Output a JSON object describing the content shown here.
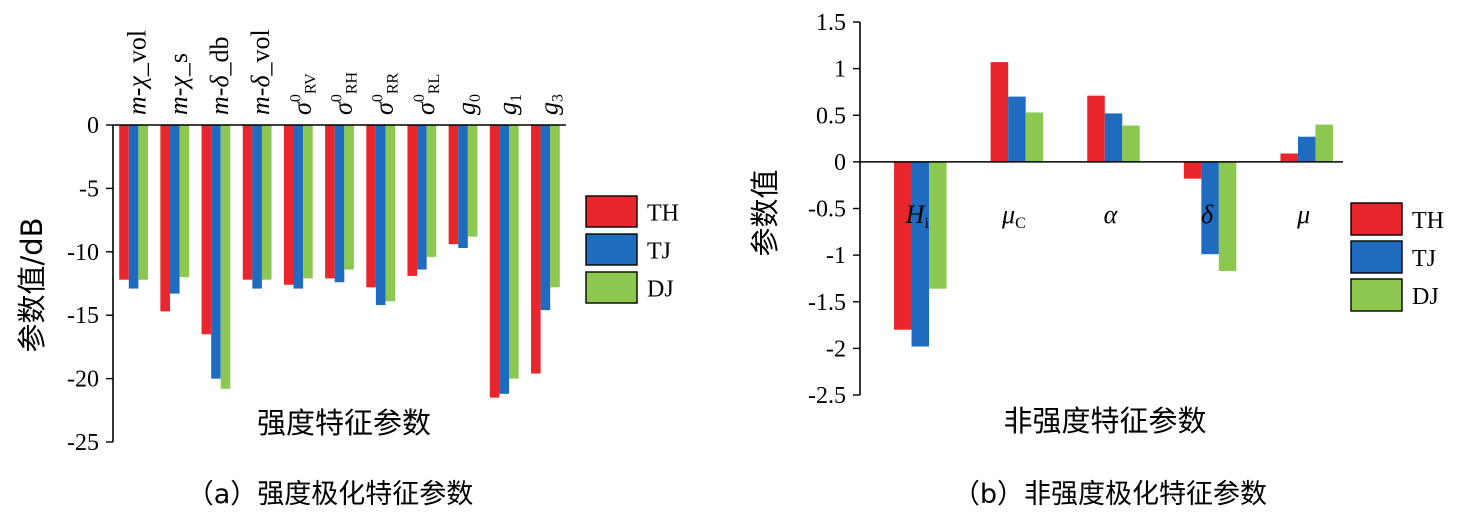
{
  "colors": {
    "TH": "#e8262c",
    "TJ": "#1f6bbf",
    "DJ": "#8cc850"
  },
  "legend": [
    "TH",
    "TJ",
    "DJ"
  ],
  "chart_data": [
    {
      "type": "bar",
      "caption": "（a）强度极化特征参数",
      "xlabel": "强度特征参数",
      "ylabel": "参数值/dB",
      "ylim": [
        -25,
        0
      ],
      "yticks": [
        "0",
        "-5",
        "-10",
        "-15",
        "-20",
        "-25"
      ],
      "legend_position": "right",
      "categories": [
        {
          "label": "m-χ_vol",
          "parts": [
            {
              "t": "m",
              "s": "i"
            },
            {
              "t": "-",
              "s": "n"
            },
            {
              "t": "χ",
              "s": "i"
            },
            {
              "t": "_vol",
              "s": "n"
            }
          ]
        },
        {
          "label": "m-χ_s",
          "parts": [
            {
              "t": "m",
              "s": "i"
            },
            {
              "t": "-",
              "s": "n"
            },
            {
              "t": "χ",
              "s": "i"
            },
            {
              "t": "_s",
              "s": "n"
            }
          ]
        },
        {
          "label": "m-δ_db",
          "parts": [
            {
              "t": "m",
              "s": "i"
            },
            {
              "t": "-",
              "s": "n"
            },
            {
              "t": "δ",
              "s": "i"
            },
            {
              "t": "_db",
              "s": "n"
            }
          ]
        },
        {
          "label": "m-δ_vol",
          "parts": [
            {
              "t": "m",
              "s": "i"
            },
            {
              "t": "-",
              "s": "n"
            },
            {
              "t": "δ",
              "s": "i"
            },
            {
              "t": "_vol",
              "s": "n"
            }
          ]
        },
        {
          "label": "σ0RV",
          "parts": [
            {
              "t": "σ",
              "s": "i"
            },
            {
              "t": "0",
              "s": "sup"
            },
            {
              "t": "RV",
              "s": "sub"
            }
          ]
        },
        {
          "label": "σ0RH",
          "parts": [
            {
              "t": "σ",
              "s": "i"
            },
            {
              "t": "0",
              "s": "sup"
            },
            {
              "t": "RH",
              "s": "sub"
            }
          ]
        },
        {
          "label": "σ0RR",
          "parts": [
            {
              "t": "σ",
              "s": "i"
            },
            {
              "t": "0",
              "s": "sup"
            },
            {
              "t": "RR",
              "s": "sub"
            }
          ]
        },
        {
          "label": "σ0RL",
          "parts": [
            {
              "t": "σ",
              "s": "i"
            },
            {
              "t": "0",
              "s": "sup"
            },
            {
              "t": "RL",
              "s": "sub"
            }
          ]
        },
        {
          "label": "g0",
          "parts": [
            {
              "t": "g",
              "s": "i"
            },
            {
              "t": "0",
              "s": "sub"
            }
          ]
        },
        {
          "label": "g1",
          "parts": [
            {
              "t": "g",
              "s": "i"
            },
            {
              "t": "1",
              "s": "sub"
            }
          ]
        },
        {
          "label": "g3",
          "parts": [
            {
              "t": "g",
              "s": "i"
            },
            {
              "t": "3",
              "s": "sub"
            }
          ]
        }
      ],
      "series": [
        {
          "name": "TH",
          "values": [
            -12.2,
            -14.7,
            -16.5,
            -12.2,
            -12.6,
            -12.1,
            -12.8,
            -11.9,
            -9.4,
            -21.5,
            -19.6
          ]
        },
        {
          "name": "TJ",
          "values": [
            -12.9,
            -13.3,
            -20.0,
            -12.9,
            -12.9,
            -12.4,
            -14.2,
            -11.4,
            -9.7,
            -21.2,
            -14.6
          ]
        },
        {
          "name": "DJ",
          "values": [
            -12.2,
            -12.0,
            -20.8,
            -12.2,
            -12.1,
            -11.4,
            -13.9,
            -10.4,
            -8.8,
            -20.0,
            -12.8
          ]
        }
      ]
    },
    {
      "type": "bar",
      "caption": "（b）非强度极化特征参数",
      "xlabel": "非强度特征参数",
      "ylabel": "参数值",
      "ylim": [
        -2.5,
        1.5
      ],
      "yticks": [
        "1.5",
        "1",
        "0.5",
        "0",
        "-0.5",
        "-1",
        "-1.5",
        "-2",
        "-2.5"
      ],
      "legend_position": "right",
      "categories": [
        {
          "label": "Hi",
          "parts": [
            {
              "t": "H",
              "s": "i"
            },
            {
              "t": "i",
              "s": "sub"
            }
          ]
        },
        {
          "label": "μC",
          "parts": [
            {
              "t": "μ",
              "s": "i"
            },
            {
              "t": "C",
              "s": "sub"
            }
          ]
        },
        {
          "label": "α",
          "parts": [
            {
              "t": "α",
              "s": "i"
            }
          ]
        },
        {
          "label": "δ",
          "parts": [
            {
              "t": "δ",
              "s": "i"
            }
          ]
        },
        {
          "label": "μ",
          "parts": [
            {
              "t": "μ",
              "s": "i"
            }
          ]
        }
      ],
      "series": [
        {
          "name": "TH",
          "values": [
            -1.8,
            1.07,
            0.71,
            -0.18,
            0.09
          ]
        },
        {
          "name": "TJ",
          "values": [
            -1.98,
            0.7,
            0.52,
            -0.99,
            0.27
          ]
        },
        {
          "name": "DJ",
          "values": [
            -1.36,
            0.53,
            0.39,
            -1.17,
            0.4
          ]
        }
      ]
    }
  ]
}
